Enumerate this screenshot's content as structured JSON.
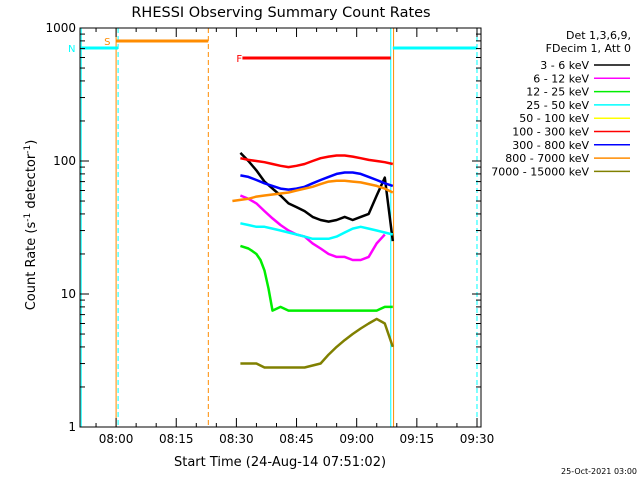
{
  "chart_data": {
    "type": "line",
    "title": "RHESSI Observing Summary Count Rates",
    "xlabel": "Start Time (24-Aug-14 07:51:02)",
    "ylabel_main": "Count Rate (s",
    "ylabel_sup1": "-1",
    "ylabel_mid": " detector",
    "ylabel_sup2": "-1",
    "ylabel_end": ")",
    "yscale": "log",
    "ylim": [
      1,
      1000
    ],
    "xlim_minutes": [
      471,
      571
    ],
    "xticks": [
      {
        "label": "08:00",
        "min": 480
      },
      {
        "label": "08:15",
        "min": 495
      },
      {
        "label": "08:30",
        "min": 510
      },
      {
        "label": "08:45",
        "min": 525
      },
      {
        "label": "09:00",
        "min": 540
      },
      {
        "label": "09:15",
        "min": 555
      },
      {
        "label": "09:30",
        "min": 570
      }
    ],
    "yticks": [
      {
        "label": "1000",
        "v": 1000
      },
      {
        "label": "100",
        "v": 100
      },
      {
        "label": "10",
        "v": 10
      },
      {
        "label": "1",
        "v": 1
      }
    ],
    "legend_header": [
      "Det 1,3,6,9,",
      "FDecim 1, Att 0"
    ],
    "series": [
      {
        "name": "3 - 6 keV",
        "color": "#000000",
        "x": [
          511,
          513,
          515,
          517,
          519,
          521,
          523,
          525,
          527,
          529,
          531,
          533,
          535,
          537,
          539,
          541,
          543,
          545,
          547,
          549
        ],
        "y": [
          115,
          100,
          85,
          70,
          62,
          55,
          48,
          45,
          42,
          38,
          36,
          35,
          36,
          38,
          36,
          38,
          40,
          55,
          75,
          25
        ]
      },
      {
        "name": "6 - 12 keV",
        "color": "#ff00ff",
        "x": [
          511,
          513,
          515,
          517,
          519,
          521,
          523,
          525,
          527,
          529,
          531,
          533,
          535,
          537,
          539,
          541,
          543,
          545,
          547
        ],
        "y": [
          55,
          52,
          48,
          42,
          37,
          33,
          30,
          28,
          27,
          24,
          22,
          20,
          19,
          19,
          18,
          18,
          19,
          24,
          28
        ]
      },
      {
        "name": "12 - 25 keV",
        "color": "#00ee00",
        "x": [
          511,
          513,
          514,
          515,
          516,
          517,
          518,
          519,
          521,
          523,
          525,
          527,
          529,
          531,
          533,
          535,
          537,
          539,
          541,
          543,
          545,
          547,
          549
        ],
        "y": [
          23,
          22,
          21,
          20,
          18,
          15,
          11,
          7.5,
          8,
          7.5,
          7.5,
          7.5,
          7.5,
          7.5,
          7.5,
          7.5,
          7.5,
          7.5,
          7.5,
          7.5,
          7.5,
          8,
          8
        ]
      },
      {
        "name": "25 - 50 keV",
        "color": "#00ffff",
        "x": [
          511,
          513,
          515,
          517,
          519,
          521,
          523,
          525,
          527,
          529,
          531,
          533,
          535,
          537,
          539,
          541,
          543,
          545,
          547,
          549
        ],
        "y": [
          34,
          33,
          32,
          32,
          31,
          30,
          29,
          28,
          27,
          26,
          26,
          26,
          27,
          29,
          31,
          32,
          31,
          30,
          29,
          28
        ]
      },
      {
        "name": "50 - 100 keV",
        "color": "#ffff00",
        "x": [],
        "y": []
      },
      {
        "name": "100 - 300 keV",
        "color": "#ff0000",
        "x": [
          511,
          513,
          515,
          517,
          519,
          521,
          523,
          525,
          527,
          529,
          531,
          533,
          535,
          537,
          539,
          541,
          543,
          545,
          547,
          549
        ],
        "y": [
          105,
          102,
          100,
          98,
          95,
          92,
          90,
          92,
          95,
          100,
          105,
          108,
          110,
          110,
          108,
          105,
          102,
          100,
          98,
          95
        ]
      },
      {
        "name": "300 - 800 keV",
        "color": "#0000ff",
        "x": [
          511,
          513,
          515,
          517,
          519,
          521,
          523,
          525,
          527,
          529,
          531,
          533,
          535,
          537,
          539,
          541,
          543,
          545,
          547,
          549
        ],
        "y": [
          78,
          76,
          72,
          68,
          65,
          62,
          61,
          62,
          64,
          68,
          72,
          76,
          80,
          82,
          82,
          80,
          76,
          72,
          68,
          65
        ]
      },
      {
        "name": "800 - 7000 keV",
        "color": "#ff8c00",
        "x": [
          509,
          511,
          513,
          515,
          517,
          519,
          521,
          523,
          525,
          527,
          529,
          531,
          533,
          535,
          537,
          539,
          541,
          543,
          545,
          547,
          549
        ],
        "y": [
          50,
          51,
          52,
          54,
          55,
          56,
          57,
          58,
          60,
          62,
          64,
          67,
          70,
          71,
          71,
          70,
          69,
          67,
          65,
          62,
          58
        ]
      },
      {
        "name": "7000 - 15000 keV",
        "color": "#808000",
        "x": [
          511,
          513,
          515,
          517,
          519,
          521,
          523,
          525,
          527,
          529,
          531,
          533,
          535,
          537,
          539,
          541,
          543,
          545,
          547,
          549
        ],
        "y": [
          3,
          3,
          3,
          2.8,
          2.8,
          2.8,
          2.8,
          2.8,
          2.8,
          2.9,
          3,
          3.5,
          4,
          4.5,
          5,
          5.5,
          6,
          6.5,
          6,
          4
        ]
      }
    ],
    "markers": [
      {
        "label": "S",
        "color": "#ff8c00",
        "x_start": 480,
        "x_end": 503
      },
      {
        "label": "N",
        "color": "#00ffff",
        "x_start": 471,
        "x_end": 480.5
      },
      {
        "label": "F",
        "color": "#ff0000",
        "x_start": 511.5,
        "x_end": 548.5
      }
    ],
    "grid": false,
    "legend_position": "right"
  },
  "footer_date": "25-Oct-2021 03:00"
}
